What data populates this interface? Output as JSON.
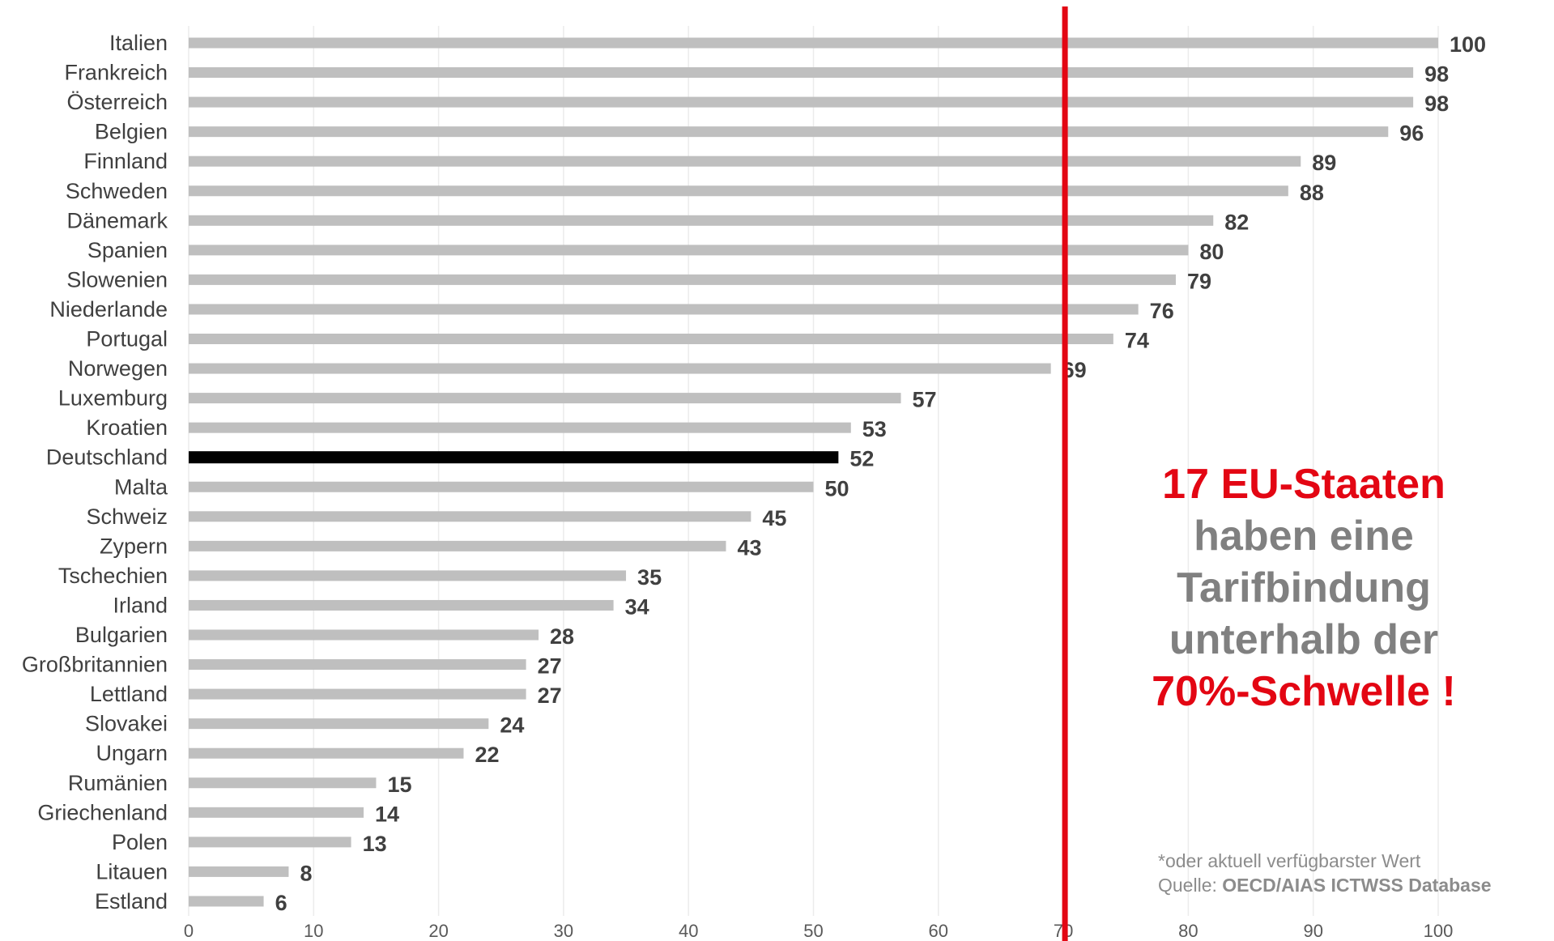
{
  "chart_data": {
    "type": "bar",
    "orientation": "horizontal",
    "categories": [
      "Italien",
      "Frankreich",
      "Österreich",
      "Belgien",
      "Finnland",
      "Schweden",
      "Dänemark",
      "Spanien",
      "Slowenien",
      "Niederlande",
      "Portugal",
      "Norwegen",
      "Luxemburg",
      "Kroatien",
      "Deutschland",
      "Malta",
      "Schweiz",
      "Zypern",
      "Tschechien",
      "Irland",
      "Bulgarien",
      "Großbritannien",
      "Lettland",
      "Slovakei",
      "Ungarn",
      "Rumänien",
      "Griechenland",
      "Polen",
      "Litauen",
      "Estland"
    ],
    "values": [
      100,
      98,
      98,
      96,
      89,
      88,
      82,
      80,
      79,
      76,
      74,
      69,
      57,
      53,
      52,
      50,
      45,
      43,
      35,
      34,
      28,
      27,
      27,
      24,
      22,
      15,
      14,
      13,
      8,
      6
    ],
    "highlight_category": "Deutschland",
    "threshold": 70,
    "xlim": [
      0,
      100
    ],
    "xticks": [
      0,
      10,
      20,
      30,
      40,
      50,
      60,
      70,
      80,
      90,
      100
    ],
    "grid": true,
    "colors": {
      "bar": "#bfbfbf",
      "highlight": "#000000",
      "threshold": "#e30613",
      "grid": "#ececec"
    }
  },
  "callout": {
    "line1": "17 EU-Staaten",
    "line2": "haben eine",
    "line3": "Tarifbindung",
    "line4": "unterhalb der",
    "line5": "70%-Schwelle !"
  },
  "source": {
    "note": "*oder aktuell verfügbarster Wert",
    "prefix": "Quelle: ",
    "name": "OECD/AIAS ICTWSS Database"
  }
}
